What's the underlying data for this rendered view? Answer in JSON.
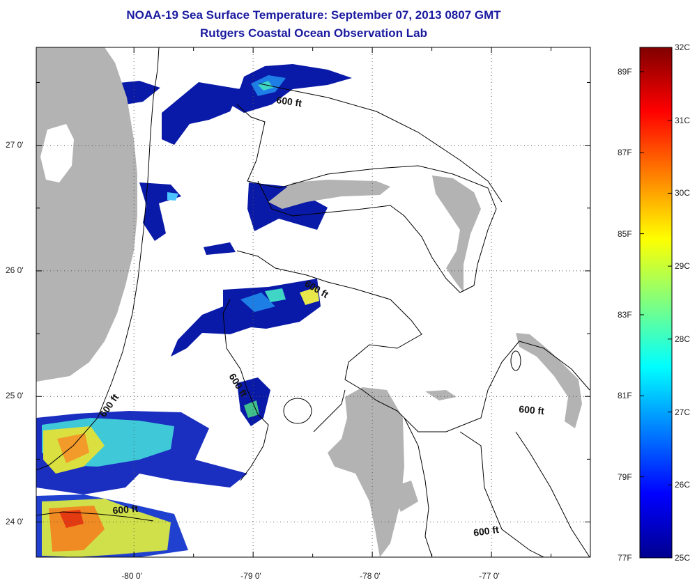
{
  "title": "NOAA-19 Sea Surface Temperature:  September 07, 2013 0807 GMT",
  "subtitle": "Rutgers Coastal Ocean Observation Lab",
  "map": {
    "lon_range": [
      -80.82,
      -76.17
    ],
    "lat_range": [
      23.72,
      27.78
    ],
    "lon_ticks": [
      {
        "v": -80,
        "label": "-80 0'"
      },
      {
        "v": -79,
        "label": "-79 0'"
      },
      {
        "v": -78,
        "label": "-78 0'"
      },
      {
        "v": -77,
        "label": "-77 0'"
      }
    ],
    "lat_ticks": [
      {
        "v": 27,
        "label": "27 0'"
      },
      {
        "v": 26,
        "label": "26 0'"
      },
      {
        "v": 25,
        "label": "25 0'"
      },
      {
        "v": 24,
        "label": "24 0'"
      }
    ],
    "contour_label": "600 ft",
    "colors": {
      "land": "#b3b3b3",
      "water_nodata": "#ffffff",
      "frame": "#000000"
    }
  },
  "colorbar": {
    "celsius_labels": [
      "32C",
      "31C",
      "30C",
      "29C",
      "28C",
      "27C",
      "26C",
      "25C"
    ],
    "fahrenheit_labels": [
      "89F",
      "87F",
      "85F",
      "83F",
      "81F",
      "79F",
      "77F"
    ],
    "range_c": [
      25,
      32
    ],
    "colormap": "jet"
  }
}
